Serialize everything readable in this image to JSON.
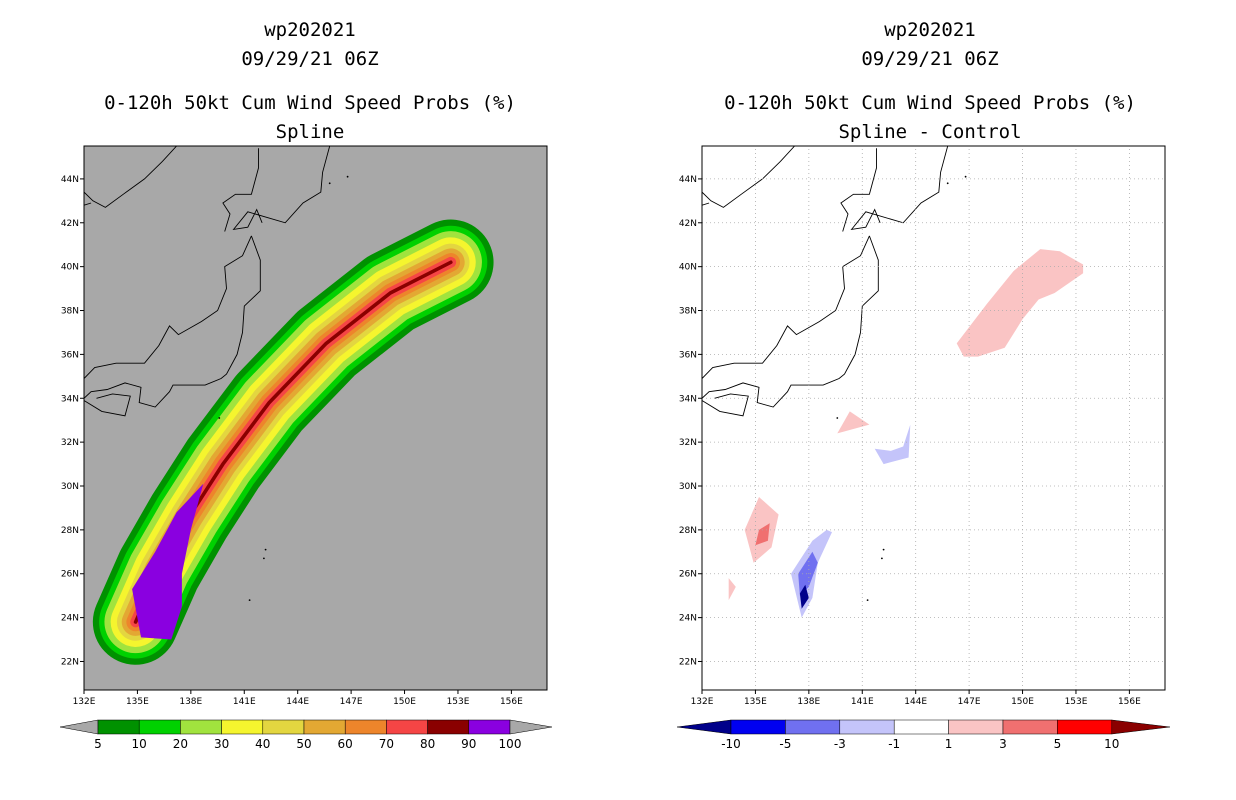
{
  "panels": [
    {
      "title_lines": [
        "wp202021",
        "09/29/21 06Z",
        "0-120h 50kt Cum Wind Speed Probs (%)",
        "Spline"
      ],
      "map_background": "#a8a8a8",
      "colorbar": {
        "colors": [
          "#009100",
          "#00d100",
          "#a1e33e",
          "#f5f52e",
          "#e3d640",
          "#e3a833",
          "#ed852b",
          "#f54545",
          "#8a0000",
          "#8a00e0"
        ],
        "labels": [
          "5",
          "10",
          "20",
          "30",
          "40",
          "50",
          "60",
          "70",
          "80",
          "90",
          "100"
        ]
      }
    },
    {
      "title_lines": [
        "wp202021",
        "09/29/21 06Z",
        "0-120h 50kt Cum Wind Speed Probs (%)",
        "Spline - Control"
      ],
      "map_background": "#ffffff",
      "colorbar": {
        "colors": [
          "#00008a",
          "#0000f0",
          "#7070f0",
          "#c4c4fa",
          "#ffffff",
          "#fac4c4",
          "#f07070",
          "#ff0000",
          "#8a0000"
        ],
        "labels": [
          "-10",
          "-5",
          "-3",
          "-1",
          "1",
          "3",
          "5",
          "10"
        ]
      }
    }
  ],
  "axes": {
    "lon_ticks": [
      "132E",
      "135E",
      "138E",
      "141E",
      "144E",
      "147E",
      "150E",
      "153E",
      "156E"
    ],
    "lat_ticks": [
      "22N",
      "24N",
      "26N",
      "28N",
      "30N",
      "32N",
      "34N",
      "36N",
      "38N",
      "40N",
      "42N",
      "44N"
    ]
  },
  "chart_data": [
    {
      "type": "heatmap",
      "title": "0-120h 50kt Cum Wind Speed Probs (%) - Spline",
      "storm": "wp202021",
      "valid": "09/29/21 06Z",
      "units": "%",
      "xlim": [
        132,
        158
      ],
      "ylim": [
        20.7,
        45.5
      ],
      "levels": [
        5,
        10,
        20,
        30,
        40,
        50,
        60,
        70,
        80,
        90,
        100
      ],
      "centerline": [
        [
          134.9,
          23.8
        ],
        [
          136.2,
          26.2
        ],
        [
          137.9,
          28.6
        ],
        [
          139.8,
          31.0
        ],
        [
          142.4,
          33.8
        ],
        [
          145.6,
          36.5
        ],
        [
          149.2,
          38.8
        ],
        [
          152.6,
          40.2
        ]
      ],
      "contour_halfwidth_deg": [
        2.4,
        2.05,
        1.75,
        1.4,
        1.05,
        0.78,
        0.52,
        0.3,
        0.1
      ],
      "core_region_ge_90": [
        [
          134.7,
          25.3
        ],
        [
          136.0,
          27.0
        ],
        [
          137.2,
          28.8
        ],
        [
          138.7,
          30.1
        ],
        [
          138.0,
          28.0
        ],
        [
          137.5,
          26.0
        ],
        [
          137.5,
          24.5
        ],
        [
          136.9,
          23.0
        ],
        [
          135.2,
          23.1
        ]
      ]
    },
    {
      "type": "heatmap",
      "title": "0-120h 50kt Cum Wind Speed Probs (%) - Spline - Control",
      "storm": "wp202021",
      "valid": "09/29/21 06Z",
      "units": "%",
      "xlim": [
        132,
        158
      ],
      "ylim": [
        20.7,
        45.5
      ],
      "levels": [
        -10,
        -5,
        -3,
        -1,
        1,
        3,
        5,
        10
      ],
      "regions": [
        {
          "sign": "positive",
          "level": "1 to 3",
          "lonlat": [
            [
              146.3,
              36.5
            ],
            [
              148.0,
              38.3
            ],
            [
              149.5,
              39.8
            ],
            [
              151.0,
              40.8
            ],
            [
              152.1,
              40.7
            ],
            [
              153.4,
              40.1
            ],
            [
              153.4,
              39.7
            ],
            [
              151.8,
              38.8
            ],
            [
              150.9,
              38.5
            ],
            [
              150.0,
              37.6
            ],
            [
              149.0,
              36.3
            ],
            [
              147.5,
              35.9
            ],
            [
              146.7,
              35.9
            ]
          ]
        },
        {
          "sign": "positive",
          "level": "1 to 3",
          "lonlat": [
            [
              134.4,
              28.0
            ],
            [
              135.2,
              29.5
            ],
            [
              136.3,
              28.7
            ],
            [
              135.9,
              27.2
            ],
            [
              134.9,
              26.5
            ]
          ]
        },
        {
          "sign": "positive",
          "level": "3 to 5",
          "lonlat": [
            [
              135.2,
              28.0
            ],
            [
              135.8,
              28.3
            ],
            [
              135.7,
              27.5
            ],
            [
              135.0,
              27.3
            ]
          ]
        },
        {
          "sign": "positive",
          "level": "1 to 3",
          "lonlat": [
            [
              141.4,
              32.8
            ],
            [
              139.6,
              32.4
            ],
            [
              140.3,
              33.4
            ]
          ]
        },
        {
          "sign": "positive",
          "level": "1 to 3",
          "lonlat": [
            [
              133.5,
              25.8
            ],
            [
              133.5,
              24.8
            ],
            [
              133.9,
              25.4
            ]
          ]
        },
        {
          "sign": "negative",
          "level": "-3 to -1",
          "lonlat": [
            [
              141.7,
              31.7
            ],
            [
              142.2,
              31.0
            ],
            [
              143.6,
              31.3
            ],
            [
              143.7,
              32.8
            ],
            [
              143.3,
              31.8
            ],
            [
              142.6,
              31.6
            ]
          ]
        },
        {
          "sign": "negative",
          "level": "-3 to -1",
          "lonlat": [
            [
              137.6,
              24.0
            ],
            [
              137.0,
              26.0
            ],
            [
              138.2,
              27.5
            ],
            [
              139.0,
              28.0
            ],
            [
              139.3,
              27.9
            ],
            [
              138.5,
              26.5
            ],
            [
              138.2,
              24.9
            ]
          ]
        },
        {
          "sign": "negative",
          "level": "-5 to -3",
          "lonlat": [
            [
              137.5,
              25.0
            ],
            [
              137.4,
              26.0
            ],
            [
              138.2,
              27.0
            ],
            [
              138.5,
              26.5
            ],
            [
              138.0,
              25.4
            ]
          ]
        },
        {
          "sign": "negative",
          "level": "<= -10",
          "lonlat": [
            [
              137.6,
              24.4
            ],
            [
              137.5,
              25.1
            ],
            [
              137.8,
              25.5
            ],
            [
              138.0,
              24.9
            ]
          ]
        }
      ]
    }
  ]
}
